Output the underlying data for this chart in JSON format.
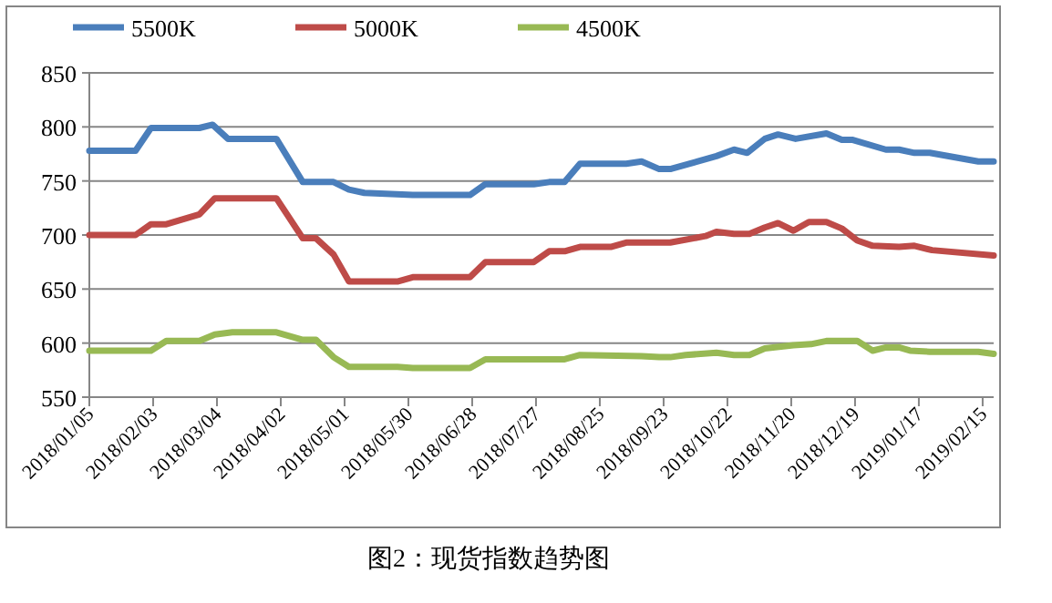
{
  "chart_data": {
    "type": "line",
    "title": "图2：现货指数趋势图",
    "xlim": [
      "2018-01-05",
      "2019-02-20"
    ],
    "xticks": [
      {
        "value": "2018-01-05",
        "label": "2018/01/05"
      },
      {
        "value": "2018-02-03",
        "label": "2018/02/03"
      },
      {
        "value": "2018-03-04",
        "label": "2018/03/04"
      },
      {
        "value": "2018-04-02",
        "label": "2018/04/02"
      },
      {
        "value": "2018-05-01",
        "label": "2018/05/01"
      },
      {
        "value": "2018-05-30",
        "label": "2018/05/30"
      },
      {
        "value": "2018-06-28",
        "label": "2018/06/28"
      },
      {
        "value": "2018-07-27",
        "label": "2018/07/27"
      },
      {
        "value": "2018-08-25",
        "label": "2018/08/25"
      },
      {
        "value": "2018-09-23",
        "label": "2018/09/23"
      },
      {
        "value": "2018-10-22",
        "label": "2018/10/22"
      },
      {
        "value": "2018-11-20",
        "label": "2018/11/20"
      },
      {
        "value": "2018-12-19",
        "label": "2018/12/19"
      },
      {
        "value": "2019-01-17",
        "label": "2019/01/17"
      },
      {
        "value": "2019-02-15",
        "label": "2019/02/15"
      }
    ],
    "ylim": [
      550,
      850
    ],
    "yticks": [
      550,
      600,
      650,
      700,
      750,
      800,
      850
    ],
    "grid": "y",
    "legend": "top",
    "marker": "none",
    "line_style": "solid",
    "series": [
      {
        "name": "5500K",
        "color": "#4a7ebb",
        "x": [
          "2018-01-05",
          "2018-01-26",
          "2018-02-02",
          "2018-02-24",
          "2018-03-02",
          "2018-03-09",
          "2018-03-31",
          "2018-04-12",
          "2018-04-26",
          "2018-05-03",
          "2018-05-10",
          "2018-06-01",
          "2018-06-27",
          "2018-07-04",
          "2018-07-26",
          "2018-08-02",
          "2018-08-09",
          "2018-08-16",
          "2018-09-06",
          "2018-09-13",
          "2018-09-21",
          "2018-09-26",
          "2018-10-17",
          "2018-10-25",
          "2018-10-31",
          "2018-11-08",
          "2018-11-14",
          "2018-11-22",
          "2018-12-06",
          "2018-12-13",
          "2018-12-18",
          "2019-01-02",
          "2019-01-08",
          "2019-01-15",
          "2019-01-22",
          "2019-02-13",
          "2019-02-20"
        ],
        "values": [
          778,
          778,
          799,
          799,
          802,
          789,
          789,
          749,
          749,
          742,
          739,
          737,
          737,
          747,
          747,
          749,
          749,
          766,
          766,
          768,
          761,
          761,
          773,
          779,
          776,
          789,
          793,
          789,
          794,
          788,
          788,
          779,
          779,
          776,
          776,
          768,
          768
        ]
      },
      {
        "name": "5000K",
        "color": "#be4b48",
        "x": [
          "2018-01-05",
          "2018-01-26",
          "2018-02-02",
          "2018-02-09",
          "2018-02-24",
          "2018-03-03",
          "2018-03-31",
          "2018-04-12",
          "2018-04-18",
          "2018-04-26",
          "2018-05-03",
          "2018-05-25",
          "2018-06-01",
          "2018-06-27",
          "2018-07-04",
          "2018-07-26",
          "2018-08-02",
          "2018-08-09",
          "2018-08-16",
          "2018-08-30",
          "2018-09-06",
          "2018-09-26",
          "2018-10-12",
          "2018-10-17",
          "2018-10-25",
          "2018-11-01",
          "2018-11-08",
          "2018-11-14",
          "2018-11-21",
          "2018-11-28",
          "2018-12-06",
          "2018-12-13",
          "2018-12-20",
          "2018-12-27",
          "2019-01-08",
          "2019-01-15",
          "2019-01-23",
          "2019-02-20"
        ],
        "values": [
          700,
          700,
          710,
          710,
          719,
          734,
          734,
          697,
          697,
          682,
          657,
          657,
          661,
          661,
          675,
          675,
          685,
          685,
          689,
          689,
          693,
          693,
          699,
          703,
          701,
          701,
          707,
          711,
          704,
          712,
          712,
          706,
          695,
          690,
          689,
          690,
          686,
          681
        ]
      },
      {
        "name": "4500K",
        "color": "#98b954",
        "x": [
          "2018-01-05",
          "2018-02-02",
          "2018-02-09",
          "2018-02-24",
          "2018-03-03",
          "2018-03-11",
          "2018-03-31",
          "2018-04-12",
          "2018-04-18",
          "2018-04-26",
          "2018-05-03",
          "2018-05-25",
          "2018-06-01",
          "2018-06-27",
          "2018-07-04",
          "2018-08-09",
          "2018-08-16",
          "2018-09-13",
          "2018-09-21",
          "2018-09-26",
          "2018-10-03",
          "2018-10-17",
          "2018-10-25",
          "2018-11-01",
          "2018-11-08",
          "2018-11-21",
          "2018-11-29",
          "2018-12-06",
          "2018-12-20",
          "2018-12-27",
          "2019-01-02",
          "2019-01-08",
          "2019-01-13",
          "2019-01-22",
          "2019-02-13",
          "2019-02-20"
        ],
        "values": [
          593,
          593,
          602,
          602,
          608,
          610,
          610,
          603,
          603,
          587,
          578,
          578,
          577,
          577,
          585,
          585,
          589,
          588,
          587,
          587,
          589,
          591,
          589,
          589,
          595,
          598,
          599,
          602,
          602,
          593,
          596,
          596,
          593,
          592,
          592,
          590
        ]
      }
    ]
  }
}
